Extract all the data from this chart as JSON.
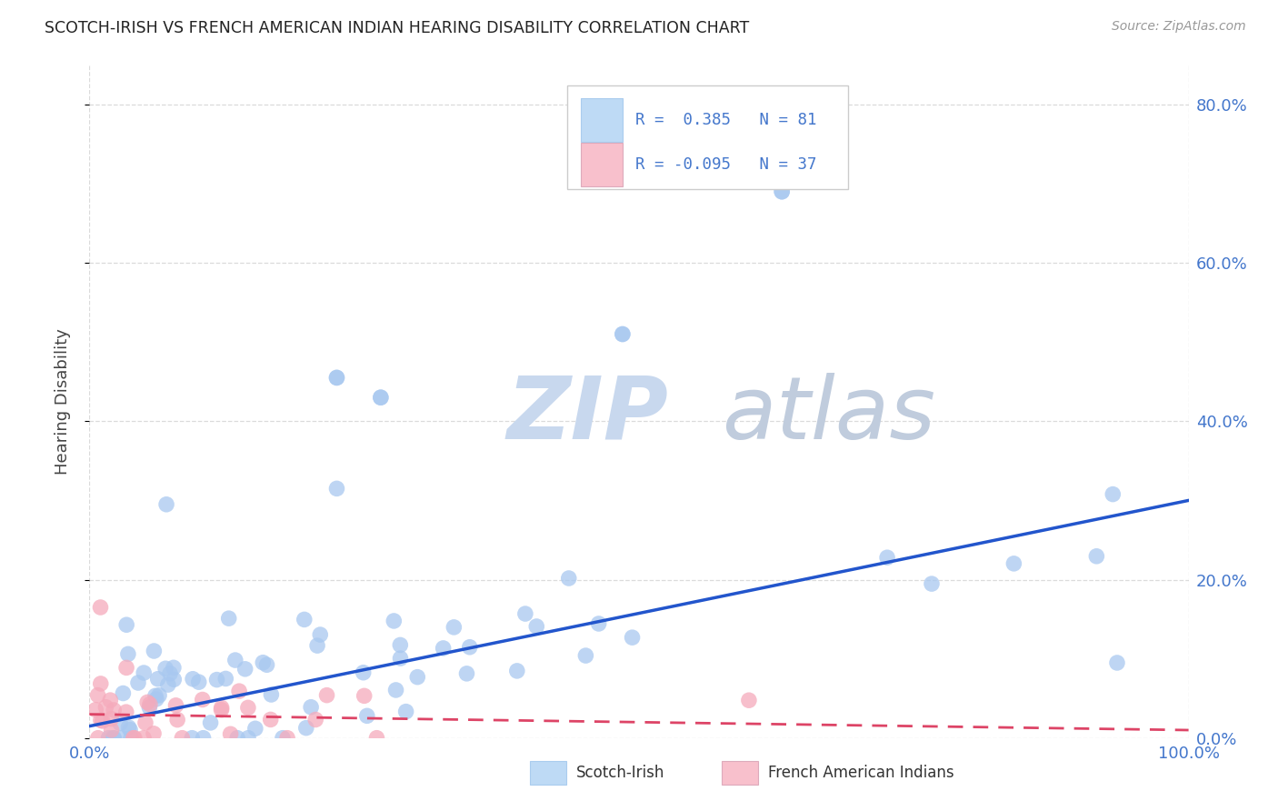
{
  "title": "SCOTCH-IRISH VS FRENCH AMERICAN INDIAN HEARING DISABILITY CORRELATION CHART",
  "source": "Source: ZipAtlas.com",
  "ylabel": "Hearing Disability",
  "blue_R": 0.385,
  "blue_N": 81,
  "pink_R": -0.095,
  "pink_N": 37,
  "blue_color": "#A8C8F0",
  "pink_color": "#F5AABB",
  "blue_line_color": "#2255CC",
  "pink_line_color": "#DD4466",
  "legend_blue_fill": "#BEDAF5",
  "legend_pink_fill": "#F8C0CC",
  "watermark_zip_color": "#C8D8EE",
  "watermark_atlas_color": "#C0CCDD",
  "title_color": "#222222",
  "axis_color": "#4477CC",
  "grid_color": "#CCCCCC",
  "background_color": "#FFFFFF",
  "xlim": [
    0.0,
    1.0
  ],
  "ylim": [
    0.0,
    0.85
  ],
  "yticks": [
    0.0,
    0.2,
    0.4,
    0.6,
    0.8
  ],
  "ytick_labels": [
    "0.0%",
    "20.0%",
    "40.0%",
    "60.0%",
    "80.0%"
  ],
  "xticks": [
    0.0,
    1.0
  ],
  "xtick_labels": [
    "0.0%",
    "100.0%"
  ],
  "blue_line_x": [
    0.0,
    1.0
  ],
  "blue_line_y": [
    0.015,
    0.3
  ],
  "pink_line_x": [
    0.0,
    1.0
  ],
  "pink_line_y": [
    0.03,
    0.01
  ]
}
